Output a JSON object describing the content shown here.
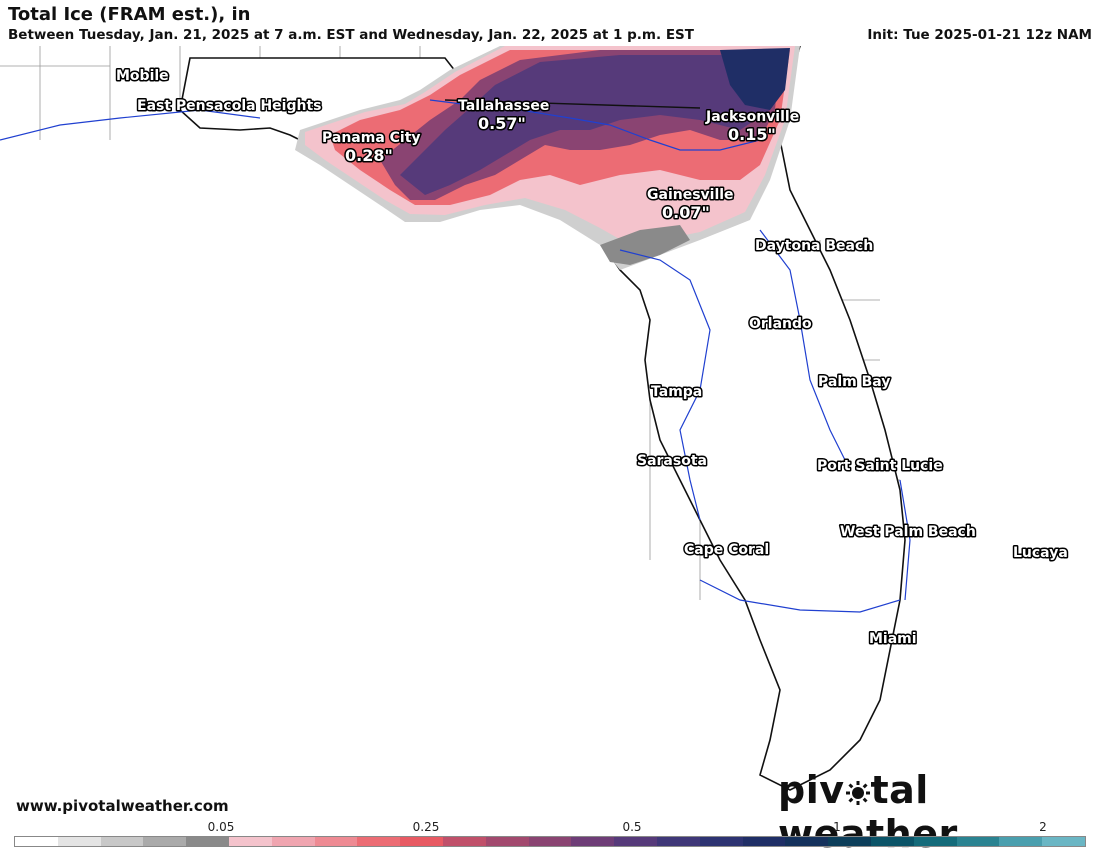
{
  "header": {
    "title": "Total Ice (FRAM est.), in",
    "subtitle": "Between Tuesday, Jan. 21, 2025 at 7 a.m. EST and Wednesday, Jan. 22, 2025 at 1 p.m. EST",
    "init": "Init: Tue 2025-01-21 12z NAM"
  },
  "cities": [
    {
      "name": "Mobile"
    },
    {
      "name": "East Pensacola Heights"
    },
    {
      "name": "Tallahassee",
      "value": "0.57\""
    },
    {
      "name": "Panama City",
      "value": "0.28\""
    },
    {
      "name": "Jacksonville",
      "value": "0.15\""
    },
    {
      "name": "Gainesville",
      "value": "0.07\""
    },
    {
      "name": "Daytona Beach"
    },
    {
      "name": "Orlando"
    },
    {
      "name": "Palm Bay"
    },
    {
      "name": "Tampa"
    },
    {
      "name": "Sarasota"
    },
    {
      "name": "Port Saint Lucie"
    },
    {
      "name": "West Palm Beach"
    },
    {
      "name": "Lucaya"
    },
    {
      "name": "Cape Coral"
    },
    {
      "name": "Miami"
    }
  ],
  "footer": {
    "website": "www.pivotalweather.com",
    "brand_left": "piv",
    "brand_right": "tal weather"
  },
  "colorbar": {
    "ticks": [
      "0.05",
      "0.25",
      "0.5",
      "1",
      "2"
    ],
    "colors": [
      "#ffffff",
      "#e4e4e4",
      "#c8c8c8",
      "#aaaaaa",
      "#8a8a8a",
      "#f4c3cc",
      "#f0a5b0",
      "#ee8a93",
      "#ec6c74",
      "#e85a63",
      "#c0506a",
      "#a2496e",
      "#8a4472",
      "#6e3d77",
      "#563a7a",
      "#3f3778",
      "#2d3372",
      "#1f2e66",
      "#14315c",
      "#0c3e5a",
      "#0b5468",
      "#146b7a",
      "#2a8391",
      "#4a9fae",
      "#6ab6c4"
    ]
  }
}
